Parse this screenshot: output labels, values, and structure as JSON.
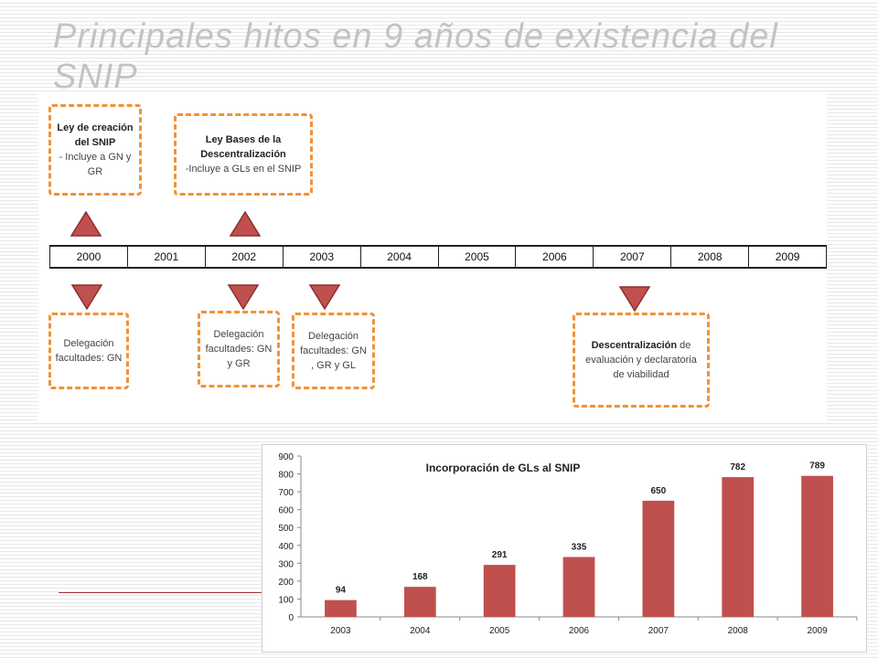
{
  "title": "Principales hitos en 9 años de existencia del SNIP",
  "timeline": {
    "years": [
      "2000",
      "2001",
      "2002",
      "2003",
      "2004",
      "2005",
      "2006",
      "2007",
      "2008",
      "2009"
    ]
  },
  "milestones_top": [
    {
      "heading": "Ley de creación del SNIP",
      "detail": "- Incluye a GN y GR"
    },
    {
      "heading": "Ley Bases de la Descentralización",
      "detail": "-Incluye a GLs en el SNIP"
    }
  ],
  "milestones_bottom": [
    {
      "heading": "",
      "detail": "Delegación facultades: GN"
    },
    {
      "heading": "",
      "detail": "Delegación facultades: GN y GR"
    },
    {
      "heading": "",
      "detail": "Delegación facultades: GN , GR y GL"
    },
    {
      "heading": "Descentralización",
      "detail": "de evaluación y declaratoria de viabilidad"
    }
  ],
  "colors": {
    "accent": "#f0923a",
    "triangle": "#c0504d",
    "bar": "#c0504d",
    "title": "#c3c3c3"
  },
  "chart_data": {
    "type": "bar",
    "title": "Incorporación de GLs al SNIP",
    "categories": [
      "2003",
      "2004",
      "2005",
      "2006",
      "2007",
      "2008",
      "2009"
    ],
    "values": [
      94,
      168,
      291,
      335,
      650,
      782,
      789
    ],
    "ylim": [
      0,
      900
    ],
    "yticks": [
      0,
      100,
      200,
      300,
      400,
      500,
      600,
      700,
      800,
      900
    ],
    "xlabel": "",
    "ylabel": "",
    "grid": false,
    "legend": "none"
  }
}
